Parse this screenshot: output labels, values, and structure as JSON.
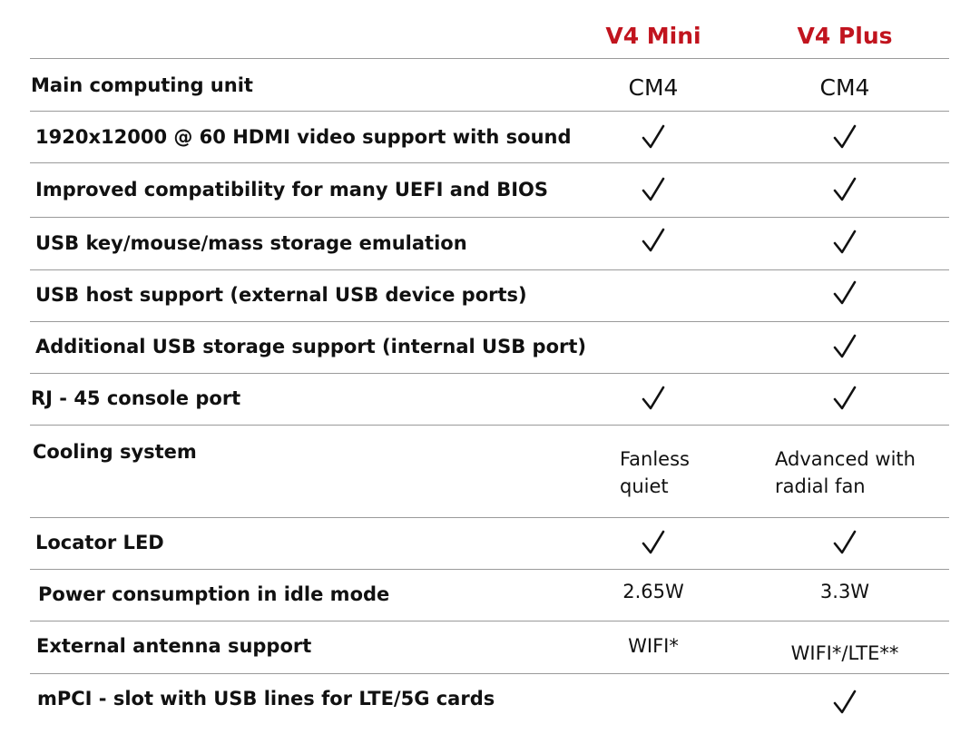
{
  "columns": {
    "mini": "V4 Mini",
    "plus": "V4 Plus"
  },
  "rows": [
    {
      "feature": "Main computing unit",
      "mini": "CM4",
      "plus": "CM4"
    },
    {
      "feature": "1920x12000 @ 60 HDMI video support with sound",
      "mini_check": true,
      "plus_check": true
    },
    {
      "feature": "Improved compatibility for many UEFI and BIOS",
      "mini_check": true,
      "plus_check": true
    },
    {
      "feature": "USB key/mouse/mass storage emulation",
      "mini_check": true,
      "plus_check": true
    },
    {
      "feature": "USB host support (external USB device ports)",
      "mini_check": false,
      "plus_check": true
    },
    {
      "feature": "Additional USB storage support (internal USB port)",
      "mini_check": false,
      "plus_check": true
    },
    {
      "feature": "RJ - 45 console port",
      "mini_check": true,
      "plus_check": true
    },
    {
      "feature": "Cooling system",
      "mini": "Fanless\nquiet",
      "plus": "Advanced with\nradial fan"
    },
    {
      "feature": "Locator LED",
      "mini_check": true,
      "plus_check": true
    },
    {
      "feature": "Power consumption in idle mode",
      "mini": "2.65W",
      "plus": "3.3W"
    },
    {
      "feature": "External antenna support",
      "mini": "WIFI*",
      "plus": "WIFI*/LTE**"
    },
    {
      "feature": "mPCI - slot with USB lines for LTE/5G cards",
      "mini_check": false,
      "plus_check": true
    }
  ],
  "colors": {
    "header_accent": "#c1141e",
    "rule": "#9a9a9a",
    "text": "#111111"
  },
  "icons": {
    "check": "check-icon"
  }
}
